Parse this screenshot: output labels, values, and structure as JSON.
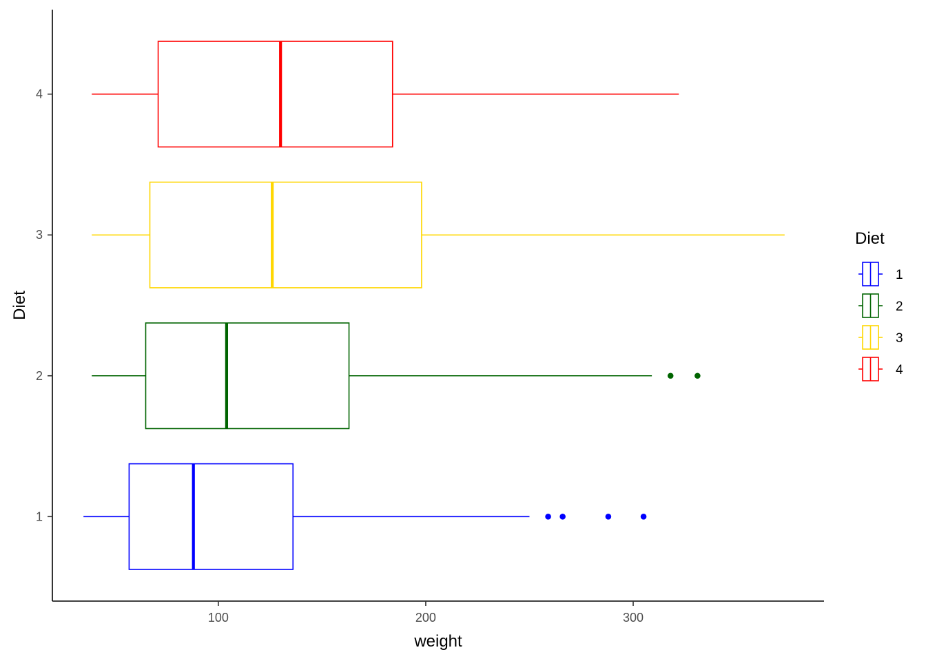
{
  "chart_data": {
    "type": "boxplot",
    "orientation": "horizontal",
    "xlabel": "weight",
    "ylabel": "Diet",
    "xlim": [
      20,
      392
    ],
    "ylim": [
      0.4,
      4.6
    ],
    "x_ticks": [
      100,
      200,
      300
    ],
    "y_ticks": [
      1,
      2,
      3,
      4
    ],
    "grid": false,
    "legend": {
      "title": "Diet",
      "position": "right"
    },
    "series": [
      {
        "name": "1",
        "color": "#0000FF",
        "whisker_low": 35,
        "q1": 57,
        "median": 88,
        "q3": 136,
        "whisker_high": 250,
        "outliers": [
          259,
          266,
          288,
          305
        ]
      },
      {
        "name": "2",
        "color": "#006400",
        "whisker_low": 39,
        "q1": 65,
        "median": 104,
        "q3": 163,
        "whisker_high": 309,
        "outliers": [
          318,
          331
        ]
      },
      {
        "name": "3",
        "color": "#FFD700",
        "whisker_low": 39,
        "q1": 67,
        "median": 126,
        "q3": 198,
        "whisker_high": 373,
        "outliers": []
      },
      {
        "name": "4",
        "color": "#FF0000",
        "whisker_low": 39,
        "q1": 71,
        "median": 130,
        "q3": 184,
        "whisker_high": 322,
        "outliers": []
      }
    ]
  }
}
